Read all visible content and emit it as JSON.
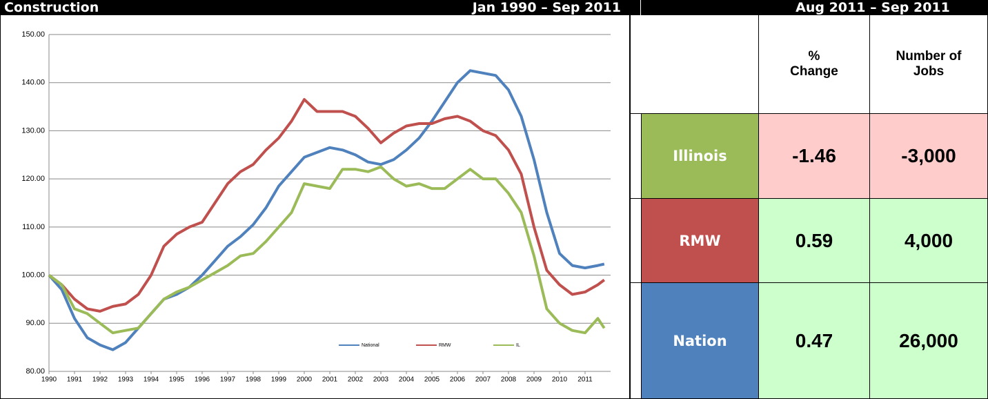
{
  "header": {
    "title": "Construction",
    "range": "Jan 1990 – Sep 2011",
    "table_range": "Aug 2011 – Sep 2011"
  },
  "chart_data": {
    "type": "line",
    "legend": "bottom",
    "grid": true,
    "x": [
      1990,
      1990.5,
      1991,
      1991.5,
      1992,
      1992.5,
      1993,
      1993.5,
      1994,
      1994.5,
      1995,
      1995.5,
      1996,
      1996.5,
      1997,
      1997.5,
      1998,
      1998.5,
      1999,
      1999.5,
      2000,
      2000.5,
      2001,
      2001.5,
      2002,
      2002.5,
      2003,
      2003.5,
      2004,
      2004.5,
      2005,
      2005.5,
      2006,
      2006.5,
      2007,
      2007.5,
      2008,
      2008.5,
      2009,
      2009.5,
      2010,
      2010.5,
      2011,
      2011.5,
      2011.75
    ],
    "xlim": [
      1990,
      2012
    ],
    "xticks": [
      1990,
      1991,
      1992,
      1993,
      1994,
      1995,
      1996,
      1997,
      1998,
      1999,
      2000,
      2001,
      2002,
      2003,
      2004,
      2005,
      2006,
      2007,
      2008,
      2009,
      2010,
      2011
    ],
    "ylim": [
      80,
      150
    ],
    "yticks": [
      {
        "value": 80,
        "label": "80.00"
      },
      {
        "value": 90,
        "label": "90.00"
      },
      {
        "value": 100,
        "label": "100.00"
      },
      {
        "value": 110,
        "label": "110.00"
      },
      {
        "value": 120,
        "label": "120.00"
      },
      {
        "value": 130,
        "label": "130.00"
      },
      {
        "value": 140,
        "label": "140.00"
      },
      {
        "value": 150,
        "label": "150.00"
      }
    ],
    "series": [
      {
        "name": "National",
        "color": "#4f81bd",
        "values": [
          100,
          97,
          91,
          87,
          85.5,
          84.5,
          86,
          89,
          92,
          95,
          96,
          97.5,
          100,
          103,
          106,
          108,
          110.5,
          114,
          118.5,
          121.5,
          124.5,
          125.5,
          126.5,
          126,
          125,
          123.5,
          123,
          124,
          126,
          128.5,
          132,
          136,
          140,
          142.5,
          142,
          141.5,
          138.5,
          133,
          124,
          113,
          104.5,
          102,
          101.5,
          102,
          102.3
        ]
      },
      {
        "name": "RMW",
        "color": "#c0504d",
        "values": [
          100,
          98,
          95,
          93,
          92.5,
          93.5,
          94,
          96,
          100,
          106,
          108.5,
          110,
          111,
          115,
          119,
          121.5,
          123,
          126,
          128.5,
          132,
          136.5,
          134,
          134,
          134,
          133,
          130.5,
          127.5,
          129.5,
          131,
          131.5,
          131.5,
          132.5,
          133,
          132,
          130,
          129,
          126,
          121,
          110,
          101,
          98,
          96,
          96.5,
          98,
          99
        ]
      },
      {
        "name": "IL",
        "color": "#9bbb59",
        "values": [
          100,
          98,
          93,
          92,
          90,
          88,
          88.5,
          89,
          92,
          95,
          96.5,
          97.5,
          99,
          100.5,
          102,
          104,
          104.5,
          107,
          110,
          113,
          119,
          118.5,
          118,
          122,
          122,
          121.5,
          122.5,
          120,
          118.5,
          119,
          118,
          118,
          120,
          122,
          120,
          120,
          117,
          113,
          104,
          93,
          90,
          88.5,
          88,
          91,
          89
        ]
      }
    ]
  },
  "table": {
    "columns": [
      "% Change",
      "Number of Jobs"
    ],
    "rows": [
      {
        "name": "Illinois",
        "color": "#9bbb59",
        "pct_change": "-1.46",
        "jobs": "-3,000",
        "cell_color": "#ffcccc"
      },
      {
        "name": "RMW",
        "color": "#c0504d",
        "pct_change": "0.59",
        "jobs": "4,000",
        "cell_color": "#ccffcc"
      },
      {
        "name": "Nation",
        "color": "#4f81bd",
        "pct_change": "0.47",
        "jobs": "26,000",
        "cell_color": "#ccffcc"
      }
    ]
  }
}
